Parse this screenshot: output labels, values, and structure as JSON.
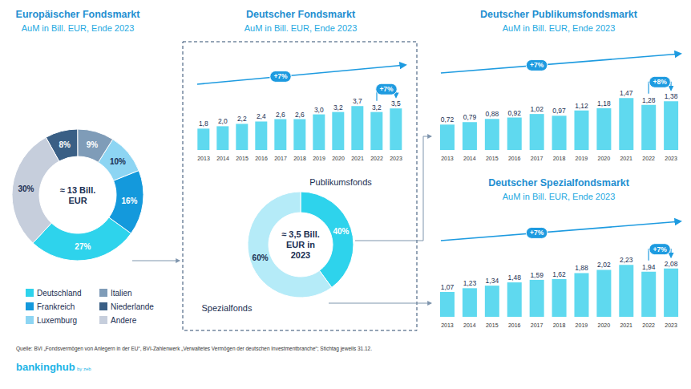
{
  "chart_data": [
    {
      "type": "pie",
      "title": "Europäischer Fondsmarkt",
      "subtitle": "AuM in Bill. EUR, Ende 2023",
      "center_text": [
        "≈ 13 Bill.",
        "EUR"
      ],
      "categories": [
        "Deutschland",
        "Frankreich",
        "Luxemburg",
        "Italien",
        "Niederlande",
        "Andere"
      ],
      "values": [
        27,
        16,
        10,
        9,
        8,
        30
      ],
      "value_labels": [
        "27%",
        "16%",
        "10%",
        "9%",
        "8%",
        "30%"
      ],
      "colors": [
        "#2ed3ec",
        "#1499dc",
        "#8dd5f3",
        "#7f9cb8",
        "#3a5f85",
        "#c6cedc"
      ],
      "data_labels": true,
      "legend": "bottom"
    },
    {
      "type": "bar",
      "title": "Deutscher Fondsmarkt",
      "subtitle": "AuM in Bill. EUR, Ende 2023",
      "categories": [
        "2013",
        "2014",
        "2015",
        "2016",
        "2017",
        "2018",
        "2019",
        "2020",
        "2021",
        "2022",
        "2023"
      ],
      "values": [
        1.8,
        2.0,
        2.2,
        2.4,
        2.6,
        2.6,
        3.0,
        3.2,
        3.7,
        3.2,
        3.5
      ],
      "value_labels": [
        "1,8",
        "2,0",
        "2,2",
        "2,4",
        "2,6",
        "2,6",
        "3,0",
        "3,2",
        "3,7",
        "3,2",
        "3,5"
      ],
      "color": "#5fd9ef",
      "ylim": [
        0,
        5
      ],
      "data_labels": true,
      "tick_labels": "x",
      "annotations": [
        {
          "text": "+7%",
          "from": "2013",
          "to": "2023"
        },
        {
          "text": "+7%",
          "from": "2022",
          "to": "2023"
        }
      ]
    },
    {
      "type": "pie",
      "center_text": [
        "≈ 3,5 Bill.",
        "EUR in",
        "2023"
      ],
      "categories": [
        "Publikumsfonds",
        "Spezialfonds"
      ],
      "values": [
        40,
        60
      ],
      "value_labels": [
        "40%",
        "60%"
      ],
      "colors": [
        "#2ed3ec",
        "#b5ebf8"
      ],
      "data_labels": true
    },
    {
      "type": "bar",
      "title": "Deutscher Publikumsfondsmarkt",
      "subtitle": "AuM in Bill. EUR, Ende 2023",
      "categories": [
        "2013",
        "2014",
        "2015",
        "2016",
        "2017",
        "2018",
        "2019",
        "2020",
        "2021",
        "2022",
        "2023"
      ],
      "values": [
        0.72,
        0.79,
        0.88,
        0.92,
        1.02,
        0.97,
        1.12,
        1.18,
        1.47,
        1.28,
        1.38
      ],
      "value_labels": [
        "0,72",
        "0,79",
        "0,88",
        "0,92",
        "1,02",
        "0,97",
        "1,12",
        "1,18",
        "1,47",
        "1,28",
        "1,38"
      ],
      "color": "#5fd9ef",
      "ylim": [
        0,
        2
      ],
      "data_labels": true,
      "tick_labels": "x",
      "annotations": [
        {
          "text": "+7%",
          "from": "2013",
          "to": "2023"
        },
        {
          "text": "+8%",
          "from": "2022",
          "to": "2023"
        }
      ]
    },
    {
      "type": "bar",
      "title": "Deutscher Spezialfondsmarkt",
      "subtitle": "AuM in Bill. EUR, Ende 2023",
      "categories": [
        "2013",
        "2014",
        "2015",
        "2016",
        "2017",
        "2018",
        "2019",
        "2020",
        "2021",
        "2022",
        "2023"
      ],
      "values": [
        1.07,
        1.23,
        1.34,
        1.48,
        1.59,
        1.62,
        1.88,
        2.02,
        2.23,
        1.94,
        2.08
      ],
      "value_labels": [
        "1,07",
        "1,23",
        "1,34",
        "1,48",
        "1,59",
        "1,62",
        "1,88",
        "2,02",
        "2,23",
        "1,94",
        "2,08"
      ],
      "color": "#5fd9ef",
      "ylim": [
        0,
        3
      ],
      "data_labels": true,
      "tick_labels": "x",
      "annotations": [
        {
          "text": "+7%",
          "from": "2013",
          "to": "2023"
        },
        {
          "text": "+7%",
          "from": "2022",
          "to": "2023"
        }
      ]
    }
  ],
  "source": "Quelle: BVI „Fondsvermögen von Anlegern in der EU“, BVI-Zahlenwerk „Verwaltetes Vermögen der deutschen Investmentbranche“; Stichtag jeweils 31.12.",
  "logo": "bankinghub",
  "logo_suffix": "by zeb"
}
